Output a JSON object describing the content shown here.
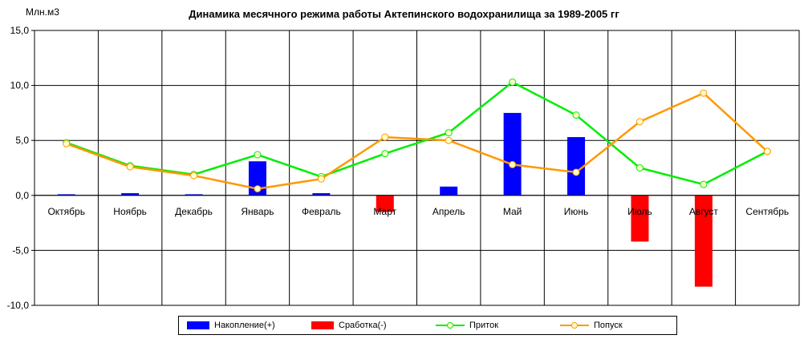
{
  "chart_data": {
    "type": "bar+line",
    "title": "Динамика месячного режима работы Актепинского водохранилища за 1989-2005 гг",
    "ylabel": "Млн.м3",
    "ylim": [
      -10,
      15
    ],
    "yticks": [
      "15,0",
      "10,0",
      "5,0",
      "0,0",
      "-5,0",
      "-10,0"
    ],
    "ytick_values": [
      15,
      10,
      5,
      0,
      -5,
      -10
    ],
    "grid": true,
    "legend_position": "bottom",
    "categories": [
      "Октябрь",
      "Ноябрь",
      "Декабрь",
      "Январь",
      "Февраль",
      "Март",
      "Апрель",
      "Май",
      "Июнь",
      "Июль",
      "Август",
      "Сентябрь"
    ],
    "series": [
      {
        "name": "Накопление(+)",
        "kind": "bar",
        "color": "#0000ff",
        "values": [
          0.1,
          0.2,
          0.1,
          3.1,
          0.2,
          0,
          0.8,
          7.5,
          5.3,
          0,
          0,
          0
        ]
      },
      {
        "name": "Сработка(-)",
        "kind": "bar",
        "color": "#ff0000",
        "values": [
          0,
          0,
          0,
          0,
          0,
          -1.5,
          0,
          0,
          0,
          -4.2,
          -8.3,
          0
        ]
      },
      {
        "name": "Приток",
        "kind": "line",
        "color": "#00ee00",
        "values": [
          4.8,
          2.7,
          1.9,
          3.7,
          1.7,
          3.8,
          5.7,
          10.3,
          7.3,
          2.5,
          1.0,
          4.0
        ]
      },
      {
        "name": "Попуск",
        "kind": "line",
        "color": "#ff9900",
        "values": [
          4.7,
          2.6,
          1.8,
          0.6,
          1.5,
          5.3,
          5.0,
          2.8,
          2.1,
          6.7,
          9.3,
          4.0
        ]
      }
    ]
  }
}
